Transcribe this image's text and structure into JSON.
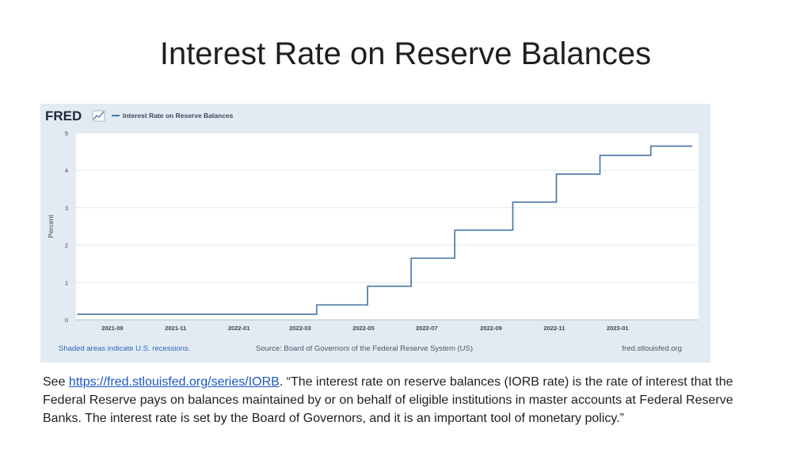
{
  "slide": {
    "title": "Interest Rate on Reserve Balances"
  },
  "fred": {
    "logo_text": "FRED",
    "legend_label": "Interest Rate on Reserve Balances",
    "line_color": "#4572a7",
    "footer_left": "Shaded areas indicate U.S. recessions.",
    "footer_center": "Source: Board of Governors of the Federal Reserve System (US)",
    "footer_right": "fred.stlouisfed.org"
  },
  "chart_data": {
    "type": "line",
    "title": "",
    "xlabel": "",
    "ylabel": "Percent",
    "ylim": [
      0,
      5
    ],
    "xlim": [
      "2021-07-28",
      "2023-03-20"
    ],
    "yticks": [
      0,
      1,
      2,
      3,
      4,
      5
    ],
    "xticks": [
      "2021-09",
      "2021-11",
      "2022-01",
      "2022-03",
      "2022-05",
      "2022-07",
      "2022-09",
      "2022-11",
      "2023-01"
    ],
    "grid": true,
    "legend_position": "top-left",
    "series": [
      {
        "name": "Interest Rate on Reserve Balances",
        "step": true,
        "x": [
          "2021-07-29",
          "2022-03-17",
          "2022-05-05",
          "2022-06-16",
          "2022-07-28",
          "2022-09-22",
          "2022-11-03",
          "2022-12-15",
          "2023-02-02",
          "2023-03-14"
        ],
        "values": [
          0.15,
          0.4,
          0.9,
          1.65,
          2.4,
          3.15,
          3.9,
          4.4,
          4.65,
          4.65
        ]
      }
    ]
  },
  "caption": {
    "prefix": "See ",
    "link_text": "https://fred.stlouisfed.org/series/IORB",
    "body": ". “The interest rate on reserve balances (IORB rate) is the rate of interest that the Federal Reserve pays on balances maintained by or on behalf of eligible institutions in master accounts at Federal Reserve Banks. The interest rate is set by the Board of Governors, and it is an important tool of monetary policy.”"
  }
}
